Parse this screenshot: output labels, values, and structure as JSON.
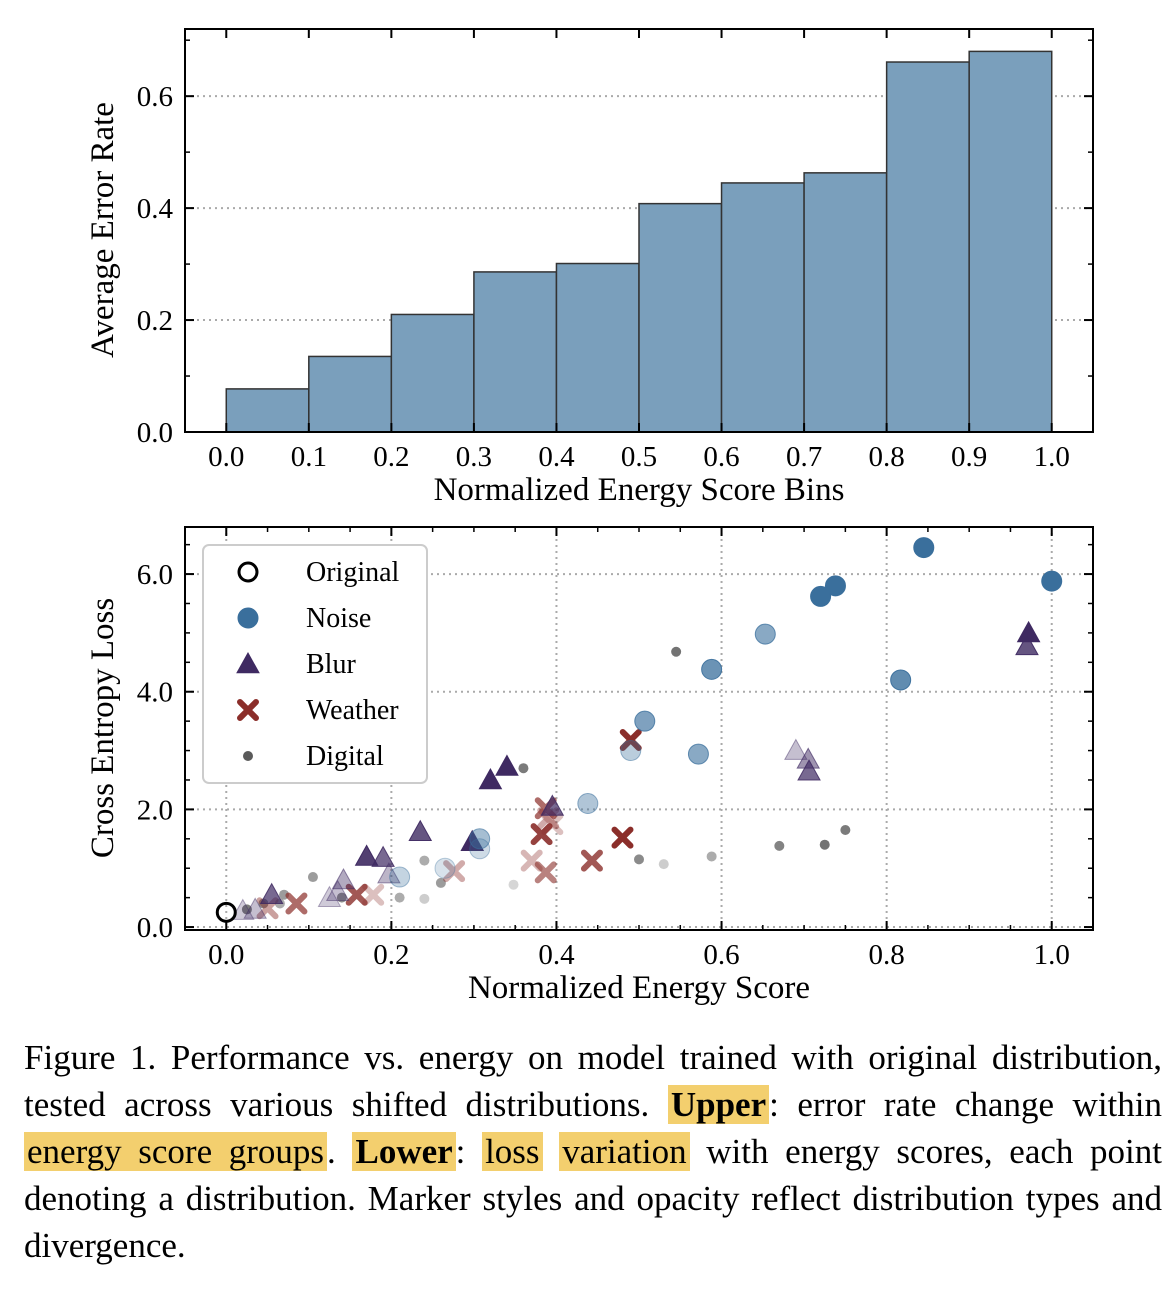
{
  "chart_data": [
    {
      "type": "bar",
      "xlabel": "Normalized Energy Score Bins",
      "ylabel": "Average Error Rate",
      "xticks": [
        "0.0",
        "0.1",
        "0.2",
        "0.3",
        "0.4",
        "0.5",
        "0.6",
        "0.7",
        "0.8",
        "0.9",
        "1.0"
      ],
      "yticks": [
        "0.0",
        "0.2",
        "0.4",
        "0.6"
      ],
      "xlim": [
        -0.05,
        1.05
      ],
      "ylim": [
        0,
        0.72
      ],
      "bins": [
        [
          0.0,
          0.1
        ],
        [
          0.1,
          0.2
        ],
        [
          0.2,
          0.3
        ],
        [
          0.3,
          0.4
        ],
        [
          0.4,
          0.5
        ],
        [
          0.5,
          0.6
        ],
        [
          0.6,
          0.7
        ],
        [
          0.7,
          0.8
        ],
        [
          0.8,
          0.9
        ],
        [
          0.9,
          1.0
        ]
      ],
      "values": [
        0.077,
        0.135,
        0.21,
        0.286,
        0.301,
        0.408,
        0.445,
        0.463,
        0.661,
        0.68
      ],
      "bar_color": "#7a9fbc",
      "grid": "horizontal dotted"
    },
    {
      "type": "scatter",
      "xlabel": "Normalized Energy Score",
      "ylabel": "Cross Entropy Loss",
      "xticks": [
        "0.0",
        "0.2",
        "0.4",
        "0.6",
        "0.8",
        "1.0"
      ],
      "yticks": [
        "0.0",
        "2.0",
        "4.0",
        "6.0"
      ],
      "xlim": [
        -0.05,
        1.05
      ],
      "ylim": [
        -0.05,
        6.8
      ],
      "legend": "top-left",
      "grid": "both dotted",
      "series": [
        {
          "name": "Original",
          "marker": "open-circle",
          "color": "#000000",
          "points": [
            [
              0.0,
              0.25,
              1.0
            ]
          ]
        },
        {
          "name": "Noise",
          "marker": "circle",
          "color": "#3a6f9c",
          "points": [
            [
              0.845,
              6.45,
              1
            ],
            [
              1.0,
              5.88,
              1
            ],
            [
              0.738,
              5.8,
              1
            ],
            [
              0.72,
              5.62,
              1
            ],
            [
              0.653,
              4.98,
              0.6
            ],
            [
              0.588,
              4.38,
              0.75
            ],
            [
              0.817,
              4.2,
              0.8
            ],
            [
              0.507,
              3.5,
              0.65
            ],
            [
              0.49,
              3.0,
              0.35
            ],
            [
              0.572,
              2.94,
              0.6
            ],
            [
              0.438,
              2.1,
              0.4
            ],
            [
              0.307,
              1.5,
              0.45
            ],
            [
              0.307,
              1.33,
              0.25
            ],
            [
              0.21,
              0.85,
              0.3
            ],
            [
              0.265,
              1.0,
              0.2
            ]
          ]
        },
        {
          "name": "Blur",
          "marker": "triangle",
          "color": "#3f2a62",
          "points": [
            [
              0.972,
              5.0,
              1
            ],
            [
              0.97,
              4.78,
              0.8
            ],
            [
              0.34,
              2.73,
              1
            ],
            [
              0.32,
              2.5,
              1
            ],
            [
              0.69,
              3.0,
              0.3
            ],
            [
              0.705,
              2.85,
              0.5
            ],
            [
              0.706,
              2.65,
              0.7
            ],
            [
              0.395,
              2.05,
              0.7
            ],
            [
              0.235,
              1.62,
              0.8
            ],
            [
              0.298,
              1.45,
              1
            ],
            [
              0.17,
              1.2,
              0.9
            ],
            [
              0.19,
              1.18,
              0.7
            ],
            [
              0.197,
              0.9,
              0.35
            ],
            [
              0.142,
              0.8,
              0.4
            ],
            [
              0.135,
              0.6,
              0.3
            ],
            [
              0.125,
              0.5,
              0.25
            ],
            [
              0.055,
              0.55,
              0.7
            ],
            [
              0.035,
              0.3,
              0.3
            ],
            [
              0.02,
              0.28,
              0.25
            ]
          ]
        },
        {
          "name": "Weather",
          "marker": "x",
          "color": "#8b2e2a",
          "points": [
            [
              0.49,
              3.18,
              1
            ],
            [
              0.387,
              2.02,
              0.7
            ],
            [
              0.39,
              1.85,
              0.4
            ],
            [
              0.395,
              1.75,
              0.3
            ],
            [
              0.382,
              1.58,
              0.9
            ],
            [
              0.48,
              1.52,
              1
            ],
            [
              0.443,
              1.13,
              0.8
            ],
            [
              0.37,
              1.13,
              0.35
            ],
            [
              0.387,
              0.93,
              0.6
            ],
            [
              0.276,
              0.95,
              0.4
            ],
            [
              0.158,
              0.55,
              0.8
            ],
            [
              0.178,
              0.55,
              0.3
            ],
            [
              0.085,
              0.4,
              0.7
            ],
            [
              0.05,
              0.32,
              0.45
            ]
          ]
        },
        {
          "name": "Digital",
          "marker": "small-dot",
          "color": "#5a5a5a",
          "points": [
            [
              0.545,
              4.68,
              0.85
            ],
            [
              0.725,
              1.4,
              0.85
            ],
            [
              0.75,
              1.65,
              0.8
            ],
            [
              0.67,
              1.38,
              0.75
            ],
            [
              0.36,
              2.7,
              0.8
            ],
            [
              0.225,
              2.7,
              0.2
            ],
            [
              0.5,
              1.15,
              0.7
            ],
            [
              0.53,
              1.07,
              0.3
            ],
            [
              0.588,
              1.2,
              0.5
            ],
            [
              0.24,
              1.13,
              0.5
            ],
            [
              0.26,
              0.75,
              0.6
            ],
            [
              0.348,
              0.72,
              0.25
            ],
            [
              0.105,
              0.85,
              0.6
            ],
            [
              0.07,
              0.55,
              0.6
            ],
            [
              0.065,
              0.4,
              0.5
            ],
            [
              0.045,
              0.4,
              0.7
            ],
            [
              0.025,
              0.3,
              0.8
            ],
            [
              0.21,
              0.5,
              0.5
            ],
            [
              0.24,
              0.48,
              0.3
            ],
            [
              0.14,
              0.5,
              0.7
            ]
          ]
        }
      ]
    }
  ],
  "caption": {
    "t1": "Figure 1. Performance vs. energy on model trained with original distribution, tested across various shifted distributions. ",
    "upper": "Upper",
    "t2": ": error rate change within ",
    "hl1": "energy score groups",
    "t3": ". ",
    "lower": "Lower",
    "t4": ": ",
    "hl2a": "loss",
    "hl2b": "variation",
    "t5": " with energy scores, each point denoting a distribution. Marker styles and opacity reflect distribution types and divergence."
  }
}
